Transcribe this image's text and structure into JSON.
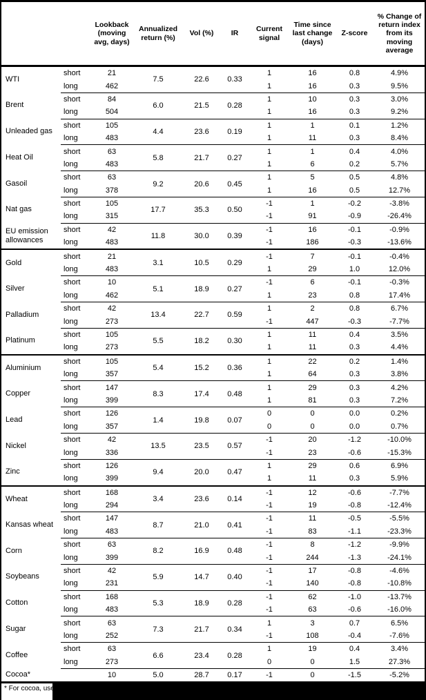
{
  "table": {
    "headers": {
      "lookback": "Lookback (moving avg, days)",
      "annualized": "Annualized return (%)",
      "vol": "Vol (%)",
      "ir": "IR",
      "signal": "Current signal",
      "time": "Time since last change (days)",
      "zscore": "Z-score",
      "pct": "% Change of return index from its moving average"
    },
    "sections": [
      {
        "id": "energy",
        "commodities": [
          {
            "name": "WTI",
            "annualized": "7.5",
            "vol": "22.6",
            "ir": "0.33",
            "legs": [
              {
                "label": "short",
                "lookback": "21",
                "signal": "1",
                "time": "16",
                "zscore": "0.8",
                "pct": "4.9%"
              },
              {
                "label": "long",
                "lookback": "462",
                "signal": "1",
                "time": "16",
                "zscore": "0.3",
                "pct": "9.5%"
              }
            ]
          },
          {
            "name": "Brent",
            "annualized": "6.0",
            "vol": "21.5",
            "ir": "0.28",
            "legs": [
              {
                "label": "short",
                "lookback": "84",
                "signal": "1",
                "time": "10",
                "zscore": "0.3",
                "pct": "3.0%"
              },
              {
                "label": "long",
                "lookback": "504",
                "signal": "1",
                "time": "16",
                "zscore": "0.3",
                "pct": "9.2%"
              }
            ]
          },
          {
            "name": "Unleaded gas",
            "annualized": "4.4",
            "vol": "23.6",
            "ir": "0.19",
            "legs": [
              {
                "label": "short",
                "lookback": "105",
                "signal": "1",
                "time": "1",
                "zscore": "0.1",
                "pct": "1.2%"
              },
              {
                "label": "long",
                "lookback": "483",
                "signal": "1",
                "time": "11",
                "zscore": "0.3",
                "pct": "8.4%"
              }
            ]
          },
          {
            "name": "Heat Oil",
            "annualized": "5.8",
            "vol": "21.7",
            "ir": "0.27",
            "legs": [
              {
                "label": "short",
                "lookback": "63",
                "signal": "1",
                "time": "1",
                "zscore": "0.4",
                "pct": "4.0%"
              },
              {
                "label": "long",
                "lookback": "483",
                "signal": "1",
                "time": "6",
                "zscore": "0.2",
                "pct": "5.7%"
              }
            ]
          },
          {
            "name": "Gasoil",
            "annualized": "9.2",
            "vol": "20.6",
            "ir": "0.45",
            "legs": [
              {
                "label": "short",
                "lookback": "63",
                "signal": "1",
                "time": "5",
                "zscore": "0.5",
                "pct": "4.8%"
              },
              {
                "label": "long",
                "lookback": "378",
                "signal": "1",
                "time": "16",
                "zscore": "0.5",
                "pct": "12.7%"
              }
            ]
          },
          {
            "name": "Nat gas",
            "annualized": "17.7",
            "vol": "35.3",
            "ir": "0.50",
            "legs": [
              {
                "label": "short",
                "lookback": "105",
                "signal": "-1",
                "time": "1",
                "zscore": "-0.2",
                "pct": "-3.8%"
              },
              {
                "label": "long",
                "lookback": "315",
                "signal": "-1",
                "time": "91",
                "zscore": "-0.9",
                "pct": "-26.4%"
              }
            ]
          },
          {
            "name": "EU emission allowances",
            "annualized": "11.8",
            "vol": "30.0",
            "ir": "0.39",
            "legs": [
              {
                "label": "short",
                "lookback": "42",
                "signal": "-1",
                "time": "16",
                "zscore": "-0.1",
                "pct": "-0.9%"
              },
              {
                "label": "long",
                "lookback": "483",
                "signal": "-1",
                "time": "186",
                "zscore": "-0.3",
                "pct": "-13.6%"
              }
            ]
          }
        ]
      },
      {
        "id": "precious-metals",
        "commodities": [
          {
            "name": "Gold",
            "annualized": "3.1",
            "vol": "10.5",
            "ir": "0.29",
            "legs": [
              {
                "label": "short",
                "lookback": "21",
                "signal": "-1",
                "time": "7",
                "zscore": "-0.1",
                "pct": "-0.4%"
              },
              {
                "label": "long",
                "lookback": "483",
                "signal": "1",
                "time": "29",
                "zscore": "1.0",
                "pct": "12.0%"
              }
            ]
          },
          {
            "name": "Silver",
            "annualized": "5.1",
            "vol": "18.9",
            "ir": "0.27",
            "legs": [
              {
                "label": "short",
                "lookback": "10",
                "signal": "-1",
                "time": "6",
                "zscore": "-0.1",
                "pct": "-0.3%"
              },
              {
                "label": "long",
                "lookback": "462",
                "signal": "1",
                "time": "23",
                "zscore": "0.8",
                "pct": "17.4%"
              }
            ]
          },
          {
            "name": "Palladium",
            "annualized": "13.4",
            "vol": "22.7",
            "ir": "0.59",
            "legs": [
              {
                "label": "short",
                "lookback": "42",
                "signal": "1",
                "time": "2",
                "zscore": "0.8",
                "pct": "6.7%"
              },
              {
                "label": "long",
                "lookback": "273",
                "signal": "-1",
                "time": "447",
                "zscore": "-0.3",
                "pct": "-7.7%"
              }
            ]
          },
          {
            "name": "Platinum",
            "annualized": "5.5",
            "vol": "18.2",
            "ir": "0.30",
            "legs": [
              {
                "label": "short",
                "lookback": "105",
                "signal": "1",
                "time": "11",
                "zscore": "0.4",
                "pct": "3.5%"
              },
              {
                "label": "long",
                "lookback": "273",
                "signal": "1",
                "time": "11",
                "zscore": "0.3",
                "pct": "4.4%"
              }
            ]
          }
        ]
      },
      {
        "id": "base-metals",
        "commodities": [
          {
            "name": "Aluminium",
            "annualized": "5.4",
            "vol": "15.2",
            "ir": "0.36",
            "legs": [
              {
                "label": "short",
                "lookback": "105",
                "signal": "1",
                "time": "22",
                "zscore": "0.2",
                "pct": "1.4%"
              },
              {
                "label": "long",
                "lookback": "357",
                "signal": "1",
                "time": "64",
                "zscore": "0.3",
                "pct": "3.8%"
              }
            ]
          },
          {
            "name": "Copper",
            "annualized": "8.3",
            "vol": "17.4",
            "ir": "0.48",
            "legs": [
              {
                "label": "short",
                "lookback": "147",
                "signal": "1",
                "time": "29",
                "zscore": "0.3",
                "pct": "4.2%"
              },
              {
                "label": "long",
                "lookback": "399",
                "signal": "1",
                "time": "81",
                "zscore": "0.3",
                "pct": "7.2%"
              }
            ]
          },
          {
            "name": "Lead",
            "annualized": "1.4",
            "vol": "19.8",
            "ir": "0.07",
            "legs": [
              {
                "label": "short",
                "lookback": "126",
                "signal": "0",
                "time": "0",
                "zscore": "0.0",
                "pct": "0.2%"
              },
              {
                "label": "long",
                "lookback": "357",
                "signal": "0",
                "time": "0",
                "zscore": "0.0",
                "pct": "0.7%"
              }
            ]
          },
          {
            "name": "Nickel",
            "annualized": "13.5",
            "vol": "23.5",
            "ir": "0.57",
            "legs": [
              {
                "label": "short",
                "lookback": "42",
                "signal": "-1",
                "time": "20",
                "zscore": "-1.2",
                "pct": "-10.0%"
              },
              {
                "label": "long",
                "lookback": "336",
                "signal": "-1",
                "time": "23",
                "zscore": "-0.6",
                "pct": "-15.3%"
              }
            ]
          },
          {
            "name": "Zinc",
            "annualized": "9.4",
            "vol": "20.0",
            "ir": "0.47",
            "legs": [
              {
                "label": "short",
                "lookback": "126",
                "signal": "1",
                "time": "29",
                "zscore": "0.6",
                "pct": "6.9%"
              },
              {
                "label": "long",
                "lookback": "399",
                "signal": "1",
                "time": "11",
                "zscore": "0.3",
                "pct": "5.9%"
              }
            ]
          }
        ]
      },
      {
        "id": "agriculture",
        "commodities": [
          {
            "name": "Wheat",
            "annualized": "3.4",
            "vol": "23.6",
            "ir": "0.14",
            "legs": [
              {
                "label": "short",
                "lookback": "168",
                "signal": "-1",
                "time": "12",
                "zscore": "-0.6",
                "pct": "-7.7%"
              },
              {
                "label": "long",
                "lookback": "294",
                "signal": "-1",
                "time": "19",
                "zscore": "-0.8",
                "pct": "-12.4%"
              }
            ]
          },
          {
            "name": "Kansas wheat",
            "annualized": "8.7",
            "vol": "21.0",
            "ir": "0.41",
            "legs": [
              {
                "label": "short",
                "lookback": "147",
                "signal": "-1",
                "time": "11",
                "zscore": "-0.5",
                "pct": "-5.5%"
              },
              {
                "label": "long",
                "lookback": "483",
                "signal": "-1",
                "time": "83",
                "zscore": "-1.1",
                "pct": "-23.3%"
              }
            ]
          },
          {
            "name": "Corn",
            "annualized": "8.2",
            "vol": "16.9",
            "ir": "0.48",
            "legs": [
              {
                "label": "short",
                "lookback": "63",
                "signal": "-1",
                "time": "8",
                "zscore": "-1.2",
                "pct": "-9.9%"
              },
              {
                "label": "long",
                "lookback": "399",
                "signal": "-1",
                "time": "244",
                "zscore": "-1.3",
                "pct": "-24.1%"
              }
            ]
          },
          {
            "name": "Soybeans",
            "annualized": "5.9",
            "vol": "14.7",
            "ir": "0.40",
            "legs": [
              {
                "label": "short",
                "lookback": "42",
                "signal": "-1",
                "time": "17",
                "zscore": "-0.8",
                "pct": "-4.6%"
              },
              {
                "label": "long",
                "lookback": "231",
                "signal": "-1",
                "time": "140",
                "zscore": "-0.8",
                "pct": "-10.8%"
              }
            ]
          },
          {
            "name": "Cotton",
            "annualized": "5.3",
            "vol": "18.9",
            "ir": "0.28",
            "legs": [
              {
                "label": "short",
                "lookback": "168",
                "signal": "-1",
                "time": "62",
                "zscore": "-1.0",
                "pct": "-13.7%"
              },
              {
                "label": "long",
                "lookback": "483",
                "signal": "-1",
                "time": "63",
                "zscore": "-0.6",
                "pct": "-16.0%"
              }
            ]
          },
          {
            "name": "Sugar",
            "annualized": "7.3",
            "vol": "21.7",
            "ir": "0.34",
            "legs": [
              {
                "label": "short",
                "lookback": "63",
                "signal": "1",
                "time": "3",
                "zscore": "0.7",
                "pct": "6.5%"
              },
              {
                "label": "long",
                "lookback": "252",
                "signal": "-1",
                "time": "108",
                "zscore": "-0.4",
                "pct": "-7.6%"
              }
            ]
          },
          {
            "name": "Coffee",
            "annualized": "6.6",
            "vol": "23.4",
            "ir": "0.28",
            "legs": [
              {
                "label": "short",
                "lookback": "63",
                "signal": "1",
                "time": "19",
                "zscore": "0.4",
                "pct": "3.4%"
              },
              {
                "label": "long",
                "lookback": "273",
                "signal": "0",
                "time": "0",
                "zscore": "1.5",
                "pct": "27.3%"
              }
            ]
          },
          {
            "name": "Cocoa*",
            "annualized": "5.0",
            "vol": "28.7",
            "ir": "0.17",
            "legs": [
              {
                "label": "",
                "lookback": "10",
                "signal": "-1",
                "time": "0",
                "zscore": "-1.5",
                "pct": "-5.2%"
              }
            ]
          }
        ]
      }
    ]
  },
  "footnote": {
    "text": "* For cocoa, uses"
  }
}
